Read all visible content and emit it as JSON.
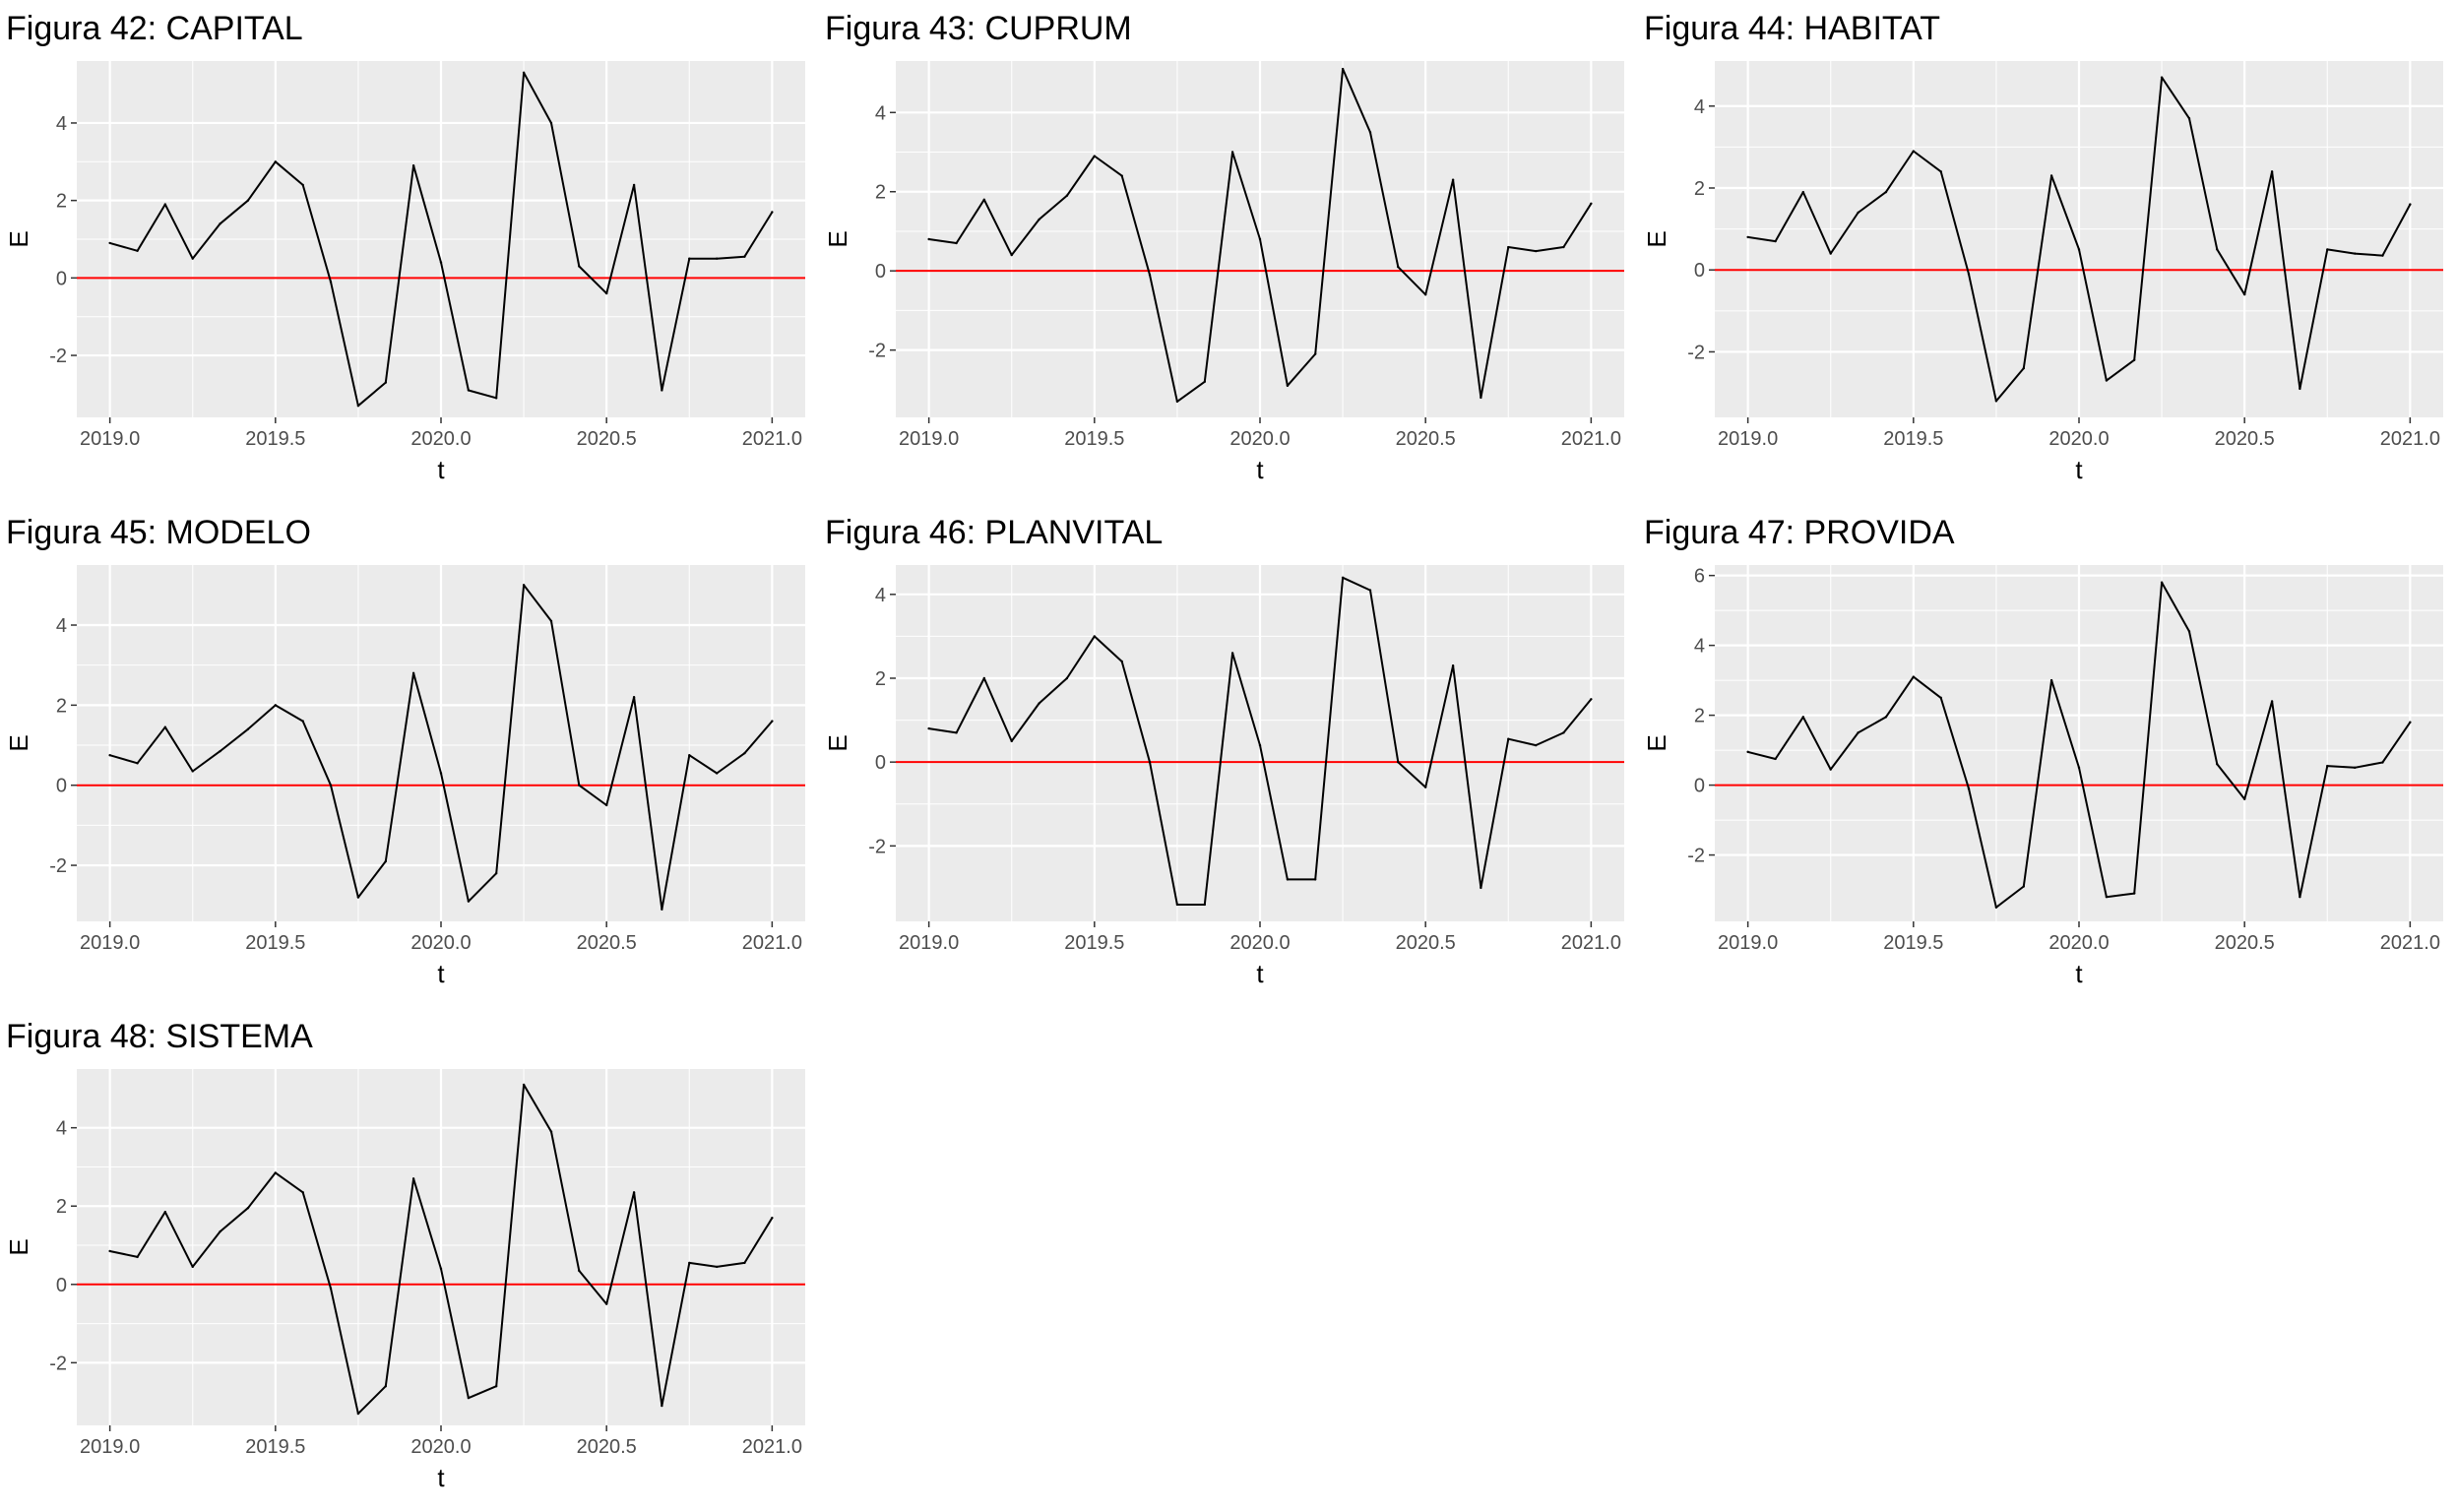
{
  "colors": {
    "panel_background": "#ebebeb",
    "grid_major": "#ffffff",
    "series_line": "#000000",
    "reference_line": "#ff0000",
    "tick_text": "#4d4d4d"
  },
  "chart_data": [
    {
      "type": "line",
      "title": "Figura 42: CAPITAL",
      "xlabel": "t",
      "ylabel": "E",
      "xlim": [
        2018.9,
        2021.1
      ],
      "ylim": [
        -3.6,
        5.6
      ],
      "x_ticks": [
        2019.0,
        2019.5,
        2020.0,
        2020.5,
        2021.0
      ],
      "x_tick_labels": [
        "2019.0",
        "2019.5",
        "2020.0",
        "2020.5",
        "2021.0"
      ],
      "y_ticks": [
        -2,
        0,
        2,
        4
      ],
      "y_tick_labels": [
        "-2",
        "0",
        "2",
        "4"
      ],
      "hline": 0,
      "grid": true,
      "x": [
        2019.0,
        2019.083,
        2019.167,
        2019.25,
        2019.333,
        2019.417,
        2019.5,
        2019.583,
        2019.667,
        2019.75,
        2019.833,
        2019.917,
        2020.0,
        2020.083,
        2020.167,
        2020.25,
        2020.333,
        2020.417,
        2020.5,
        2020.583,
        2020.667,
        2020.75,
        2020.833,
        2020.917,
        2021.0
      ],
      "series": [
        {
          "values": [
            0.9,
            0.7,
            1.9,
            0.5,
            1.4,
            2.0,
            3.0,
            2.4,
            -0.1,
            -3.3,
            -2.7,
            2.9,
            0.4,
            -2.9,
            -3.1,
            5.3,
            4.0,
            0.3,
            -0.4,
            2.4,
            -2.9,
            0.5,
            0.5,
            0.55,
            1.7
          ]
        }
      ]
    },
    {
      "type": "line",
      "title": "Figura 43: CUPRUM",
      "xlabel": "t",
      "ylabel": "E",
      "xlim": [
        2018.9,
        2021.1
      ],
      "ylim": [
        -3.7,
        5.3
      ],
      "x_ticks": [
        2019.0,
        2019.5,
        2020.0,
        2020.5,
        2021.0
      ],
      "x_tick_labels": [
        "2019.0",
        "2019.5",
        "2020.0",
        "2020.5",
        "2021.0"
      ],
      "y_ticks": [
        -2,
        0,
        2,
        4
      ],
      "y_tick_labels": [
        "-2",
        "0",
        "2",
        "4"
      ],
      "hline": 0,
      "grid": true,
      "x": [
        2019.0,
        2019.083,
        2019.167,
        2019.25,
        2019.333,
        2019.417,
        2019.5,
        2019.583,
        2019.667,
        2019.75,
        2019.833,
        2019.917,
        2020.0,
        2020.083,
        2020.167,
        2020.25,
        2020.333,
        2020.417,
        2020.5,
        2020.583,
        2020.667,
        2020.75,
        2020.833,
        2020.917,
        2021.0
      ],
      "series": [
        {
          "values": [
            0.8,
            0.7,
            1.8,
            0.4,
            1.3,
            1.9,
            2.9,
            2.4,
            -0.1,
            -3.3,
            -2.8,
            3.0,
            0.8,
            -2.9,
            -2.1,
            5.1,
            3.5,
            0.1,
            -0.6,
            2.3,
            -3.2,
            0.6,
            0.5,
            0.6,
            1.7
          ]
        }
      ]
    },
    {
      "type": "line",
      "title": "Figura 44: HABITAT",
      "xlabel": "t",
      "ylabel": "E",
      "xlim": [
        2018.9,
        2021.1
      ],
      "ylim": [
        -3.6,
        5.1
      ],
      "x_ticks": [
        2019.0,
        2019.5,
        2020.0,
        2020.5,
        2021.0
      ],
      "x_tick_labels": [
        "2019.0",
        "2019.5",
        "2020.0",
        "2020.5",
        "2021.0"
      ],
      "y_ticks": [
        -2,
        0,
        2,
        4
      ],
      "y_tick_labels": [
        "-2",
        "0",
        "2",
        "4"
      ],
      "hline": 0,
      "grid": true,
      "x": [
        2019.0,
        2019.083,
        2019.167,
        2019.25,
        2019.333,
        2019.417,
        2019.5,
        2019.583,
        2019.667,
        2019.75,
        2019.833,
        2019.917,
        2020.0,
        2020.083,
        2020.167,
        2020.25,
        2020.333,
        2020.417,
        2020.5,
        2020.583,
        2020.667,
        2020.75,
        2020.833,
        2020.917,
        2021.0
      ],
      "series": [
        {
          "values": [
            0.8,
            0.7,
            1.9,
            0.4,
            1.4,
            1.9,
            2.9,
            2.4,
            -0.1,
            -3.2,
            -2.4,
            2.3,
            0.5,
            -2.7,
            -2.2,
            4.7,
            3.7,
            0.5,
            -0.6,
            2.4,
            -2.9,
            0.5,
            0.4,
            0.35,
            1.6
          ]
        }
      ]
    },
    {
      "type": "line",
      "title": "Figura 45: MODELO",
      "xlabel": "t",
      "ylabel": "E",
      "xlim": [
        2018.9,
        2021.1
      ],
      "ylim": [
        -3.4,
        5.5
      ],
      "x_ticks": [
        2019.0,
        2019.5,
        2020.0,
        2020.5,
        2021.0
      ],
      "x_tick_labels": [
        "2019.0",
        "2019.5",
        "2020.0",
        "2020.5",
        "2021.0"
      ],
      "y_ticks": [
        -2,
        0,
        2,
        4
      ],
      "y_tick_labels": [
        "-2",
        "0",
        "2",
        "4"
      ],
      "hline": 0,
      "grid": true,
      "x": [
        2019.0,
        2019.083,
        2019.167,
        2019.25,
        2019.333,
        2019.417,
        2019.5,
        2019.583,
        2019.667,
        2019.75,
        2019.833,
        2019.917,
        2020.0,
        2020.083,
        2020.167,
        2020.25,
        2020.333,
        2020.417,
        2020.5,
        2020.583,
        2020.667,
        2020.75,
        2020.833,
        2020.917,
        2021.0
      ],
      "series": [
        {
          "values": [
            0.75,
            0.55,
            1.45,
            0.35,
            0.85,
            1.4,
            2.0,
            1.6,
            0.0,
            -2.8,
            -1.9,
            2.8,
            0.3,
            -2.9,
            -2.2,
            5.0,
            4.1,
            0.0,
            -0.5,
            2.2,
            -3.1,
            0.75,
            0.3,
            0.8,
            1.6
          ]
        }
      ]
    },
    {
      "type": "line",
      "title": "Figura 46: PLANVITAL",
      "xlabel": "t",
      "ylabel": "E",
      "xlim": [
        2018.9,
        2021.1
      ],
      "ylim": [
        -3.8,
        4.7
      ],
      "x_ticks": [
        2019.0,
        2019.5,
        2020.0,
        2020.5,
        2021.0
      ],
      "x_tick_labels": [
        "2019.0",
        "2019.5",
        "2020.0",
        "2020.5",
        "2021.0"
      ],
      "y_ticks": [
        -2,
        0,
        2,
        4
      ],
      "y_tick_labels": [
        "-2",
        "0",
        "2",
        "4"
      ],
      "hline": 0,
      "grid": true,
      "x": [
        2019.0,
        2019.083,
        2019.167,
        2019.25,
        2019.333,
        2019.417,
        2019.5,
        2019.583,
        2019.667,
        2019.75,
        2019.833,
        2019.917,
        2020.0,
        2020.083,
        2020.167,
        2020.25,
        2020.333,
        2020.417,
        2020.5,
        2020.583,
        2020.667,
        2020.75,
        2020.833,
        2020.917,
        2021.0
      ],
      "series": [
        {
          "values": [
            0.8,
            0.7,
            2.0,
            0.5,
            1.4,
            2.0,
            3.0,
            2.4,
            0.0,
            -3.4,
            -3.4,
            2.6,
            0.4,
            -2.8,
            -2.8,
            4.4,
            4.1,
            0.0,
            -0.6,
            2.3,
            -3.0,
            0.55,
            0.4,
            0.7,
            1.5
          ]
        }
      ]
    },
    {
      "type": "line",
      "title": "Figura 47: PROVIDA",
      "xlabel": "t",
      "ylabel": "E",
      "xlim": [
        2018.9,
        2021.1
      ],
      "ylim": [
        -3.9,
        6.3
      ],
      "x_ticks": [
        2019.0,
        2019.5,
        2020.0,
        2020.5,
        2021.0
      ],
      "x_tick_labels": [
        "2019.0",
        "2019.5",
        "2020.0",
        "2020.5",
        "2021.0"
      ],
      "y_ticks": [
        -2,
        0,
        2,
        4,
        6
      ],
      "y_tick_labels": [
        "-2",
        "0",
        "2",
        "4",
        "6"
      ],
      "hline": 0,
      "grid": true,
      "x": [
        2019.0,
        2019.083,
        2019.167,
        2019.25,
        2019.333,
        2019.417,
        2019.5,
        2019.583,
        2019.667,
        2019.75,
        2019.833,
        2019.917,
        2020.0,
        2020.083,
        2020.167,
        2020.25,
        2020.333,
        2020.417,
        2020.5,
        2020.583,
        2020.667,
        2020.75,
        2020.833,
        2020.917,
        2021.0
      ],
      "series": [
        {
          "values": [
            0.95,
            0.75,
            1.95,
            0.45,
            1.5,
            1.95,
            3.1,
            2.5,
            -0.1,
            -3.5,
            -2.9,
            3.0,
            0.5,
            -3.2,
            -3.1,
            5.8,
            4.4,
            0.6,
            -0.4,
            2.4,
            -3.2,
            0.55,
            0.5,
            0.65,
            1.8
          ]
        }
      ]
    },
    {
      "type": "line",
      "title": "Figura 48: SISTEMA",
      "xlabel": "t",
      "ylabel": "E",
      "xlim": [
        2018.9,
        2021.1
      ],
      "ylim": [
        -3.6,
        5.5
      ],
      "x_ticks": [
        2019.0,
        2019.5,
        2020.0,
        2020.5,
        2021.0
      ],
      "x_tick_labels": [
        "2019.0",
        "2019.5",
        "2020.0",
        "2020.5",
        "2021.0"
      ],
      "y_ticks": [
        -2,
        0,
        2,
        4
      ],
      "y_tick_labels": [
        "-2",
        "0",
        "2",
        "4"
      ],
      "hline": 0,
      "grid": true,
      "x": [
        2019.0,
        2019.083,
        2019.167,
        2019.25,
        2019.333,
        2019.417,
        2019.5,
        2019.583,
        2019.667,
        2019.75,
        2019.833,
        2019.917,
        2020.0,
        2020.083,
        2020.167,
        2020.25,
        2020.333,
        2020.417,
        2020.5,
        2020.583,
        2020.667,
        2020.75,
        2020.833,
        2020.917,
        2021.0
      ],
      "series": [
        {
          "values": [
            0.85,
            0.7,
            1.85,
            0.45,
            1.35,
            1.95,
            2.85,
            2.35,
            -0.1,
            -3.3,
            -2.6,
            2.7,
            0.4,
            -2.9,
            -2.6,
            5.1,
            3.9,
            0.35,
            -0.5,
            2.35,
            -3.1,
            0.55,
            0.45,
            0.55,
            1.7
          ]
        }
      ]
    }
  ]
}
